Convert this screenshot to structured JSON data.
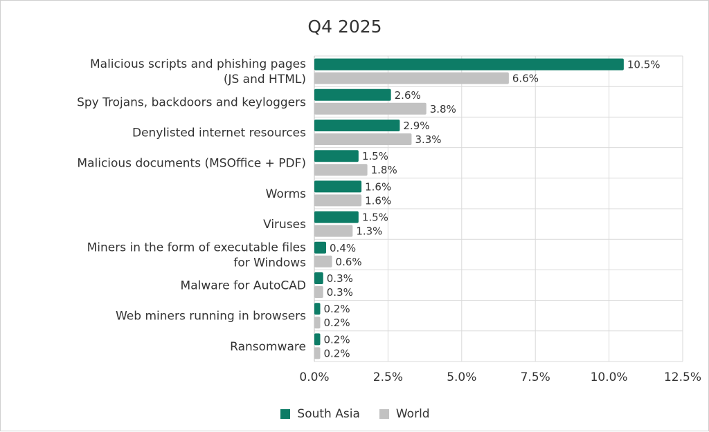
{
  "chart_data": {
    "type": "bar",
    "orientation": "horizontal",
    "title": "Q4 2025",
    "xlabel": "",
    "ylabel": "",
    "categories": [
      [
        "Malicious scripts and phishing pages",
        "(JS and HTML)"
      ],
      [
        "Spy Trojans, backdoors and keyloggers"
      ],
      [
        "Denylisted internet resources"
      ],
      [
        "Malicious documents (MSOffice + PDF)"
      ],
      [
        "Worms"
      ],
      [
        "Viruses"
      ],
      [
        "Miners in the form of executable files",
        "for Windows"
      ],
      [
        "Malware for AutoCAD"
      ],
      [
        "Web miners running in browsers"
      ],
      [
        "Ransomware"
      ]
    ],
    "series": [
      {
        "name": "South Asia",
        "color": "#0d7c66",
        "values": [
          10.5,
          2.6,
          2.9,
          1.5,
          1.6,
          1.5,
          0.4,
          0.3,
          0.2,
          0.2
        ],
        "labels": [
          "10.5%",
          "2.6%",
          "2.9%",
          "1.5%",
          "1.6%",
          "1.5%",
          "0.4%",
          "0.3%",
          "0.2%",
          "0.2%"
        ]
      },
      {
        "name": "World",
        "color": "#c2c2c2",
        "values": [
          6.6,
          3.8,
          3.3,
          1.8,
          1.6,
          1.3,
          0.6,
          0.3,
          0.2,
          0.2
        ],
        "labels": [
          "6.6%",
          "3.8%",
          "3.3%",
          "1.8%",
          "1.6%",
          "1.3%",
          "0.6%",
          "0.3%",
          "0.2%",
          "0.2%"
        ]
      }
    ],
    "xlim": [
      0,
      12.5
    ],
    "ticks": [
      0,
      2.5,
      5,
      7.5,
      10,
      12.5
    ],
    "tick_labels": [
      "0.0%",
      "2.5%",
      "5.0%",
      "7.5%",
      "10.0%",
      "12.5%"
    ],
    "grid": true,
    "legend_position": "bottom"
  }
}
